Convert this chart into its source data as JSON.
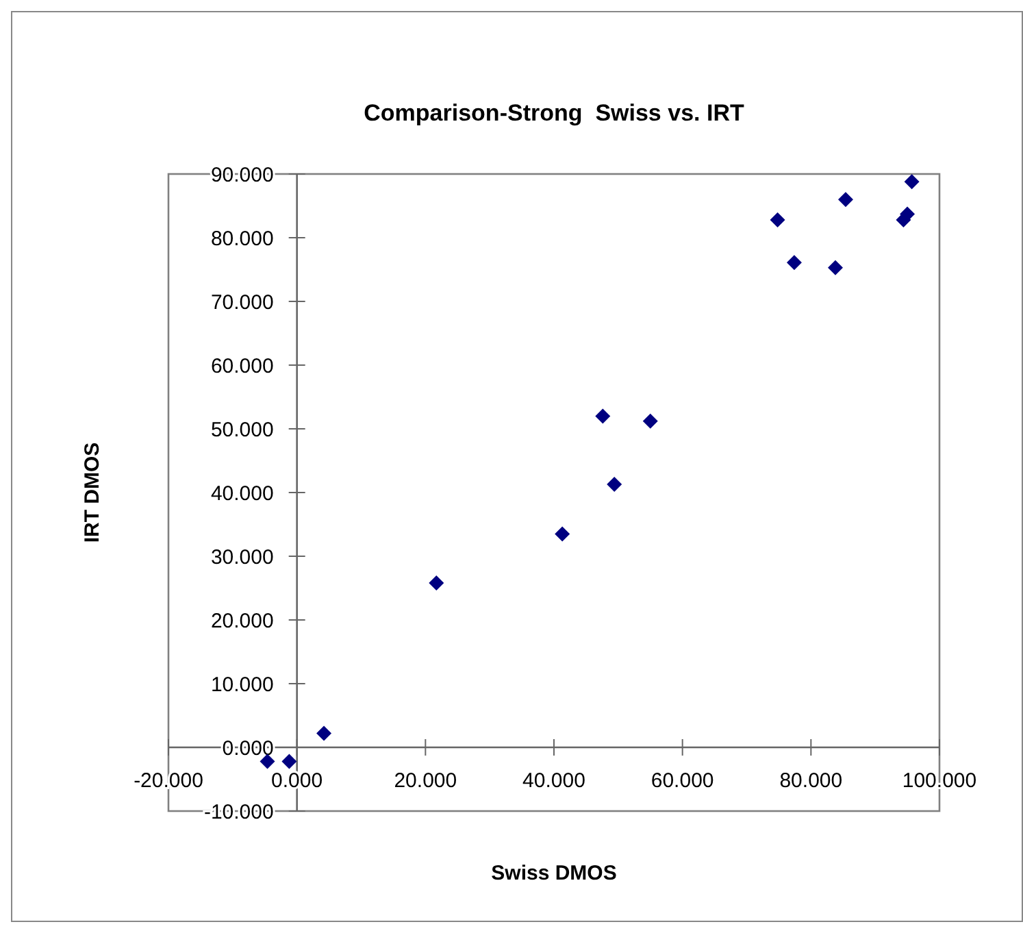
{
  "chart_data": {
    "type": "scatter",
    "title": "Comparison-Strong  Swiss vs. IRT",
    "xlabel": "Swiss DMOS",
    "ylabel": "IRT DMOS",
    "x": [
      -4.6,
      -1.2,
      4.2,
      21.7,
      41.3,
      47.6,
      55.0,
      49.4,
      77.4,
      83.8,
      74.8,
      85.4,
      94.4,
      95.0,
      95.7
    ],
    "series": [
      {
        "color": "#000080",
        "values": [
          -2.2,
          -2.2,
          2.2,
          25.8,
          33.5,
          52.0,
          51.2,
          41.3,
          76.1,
          75.3,
          82.8,
          86.0,
          82.8,
          83.7,
          88.8
        ]
      }
    ],
    "xlim": [
      -20,
      100
    ],
    "xticks": [
      {
        "value": -20,
        "label": "-20.000"
      },
      {
        "value": 0,
        "label": "0.000"
      },
      {
        "value": 20,
        "label": "20.000"
      },
      {
        "value": 40,
        "label": "40.000"
      },
      {
        "value": 60,
        "label": "60.000"
      },
      {
        "value": 80,
        "label": "80.000"
      },
      {
        "value": 100,
        "label": "100.000"
      }
    ],
    "ylim": [
      -10,
      90
    ],
    "yticks": [
      {
        "value": -10,
        "label": "-10.000"
      },
      {
        "value": 0,
        "label": "0.000"
      },
      {
        "value": 10,
        "label": "10.000"
      },
      {
        "value": 20,
        "label": "20.000"
      },
      {
        "value": 30,
        "label": "30.000"
      },
      {
        "value": 40,
        "label": "40.000"
      },
      {
        "value": 50,
        "label": "50.000"
      },
      {
        "value": 60,
        "label": "60.000"
      },
      {
        "value": 70,
        "label": "70.000"
      },
      {
        "value": 80,
        "label": "80.000"
      },
      {
        "value": 90,
        "label": "90.000"
      }
    ],
    "marker": "diamond"
  }
}
